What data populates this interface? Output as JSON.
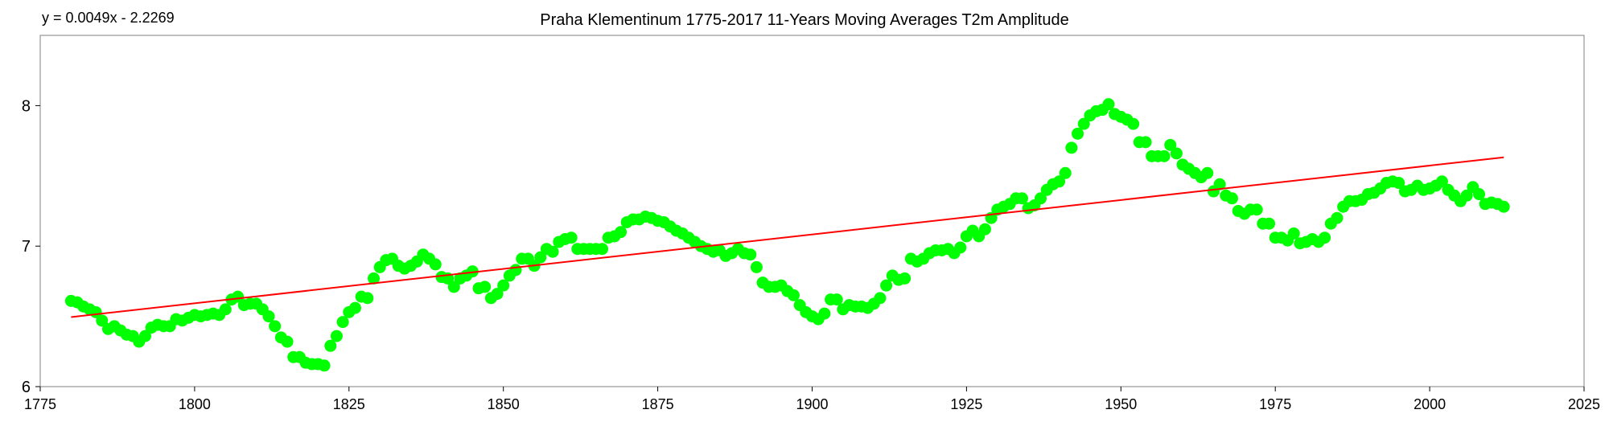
{
  "chart_data": {
    "type": "scatter",
    "title": "Praha Klementinum 1775-2017 11-Years Moving Averages T2m Amplitude",
    "trendline_equation": "y = 0.0049x - 2.2269",
    "xlabel": "",
    "ylabel": "",
    "xlim": [
      1775,
      2025
    ],
    "ylim": [
      6,
      8.5
    ],
    "x_ticks": [
      "1775",
      "1800",
      "1825",
      "1850",
      "1875",
      "1900",
      "1925",
      "1950",
      "1975",
      "2000",
      "2025"
    ],
    "y_ticks": [
      "6",
      "7",
      "8"
    ],
    "grid": false,
    "marker_color": "#00ff00",
    "trend_color": "#ff0000",
    "trendline": {
      "x_start": 1780,
      "x_end": 2012,
      "slope": 0.0049,
      "intercept": -2.2269
    },
    "series": [
      {
        "values": [
          [
            1780,
            6.61
          ],
          [
            1781,
            6.6
          ],
          [
            1782,
            6.57
          ],
          [
            1783,
            6.55
          ],
          [
            1784,
            6.53
          ],
          [
            1785,
            6.47
          ],
          [
            1786,
            6.41
          ],
          [
            1787,
            6.43
          ],
          [
            1788,
            6.4
          ],
          [
            1789,
            6.37
          ],
          [
            1790,
            6.36
          ],
          [
            1791,
            6.32
          ],
          [
            1792,
            6.36
          ],
          [
            1793,
            6.42
          ],
          [
            1794,
            6.44
          ],
          [
            1795,
            6.43
          ],
          [
            1796,
            6.43
          ],
          [
            1797,
            6.48
          ],
          [
            1798,
            6.47
          ],
          [
            1799,
            6.49
          ],
          [
            1800,
            6.51
          ],
          [
            1801,
            6.5
          ],
          [
            1802,
            6.51
          ],
          [
            1803,
            6.52
          ],
          [
            1804,
            6.51
          ],
          [
            1805,
            6.55
          ],
          [
            1806,
            6.62
          ],
          [
            1807,
            6.64
          ],
          [
            1808,
            6.58
          ],
          [
            1809,
            6.59
          ],
          [
            1810,
            6.59
          ],
          [
            1811,
            6.55
          ],
          [
            1812,
            6.5
          ],
          [
            1813,
            6.43
          ],
          [
            1814,
            6.35
          ],
          [
            1815,
            6.32
          ],
          [
            1816,
            6.21
          ],
          [
            1817,
            6.21
          ],
          [
            1818,
            6.17
          ],
          [
            1819,
            6.16
          ],
          [
            1820,
            6.16
          ],
          [
            1821,
            6.15
          ],
          [
            1822,
            6.29
          ],
          [
            1823,
            6.36
          ],
          [
            1824,
            6.46
          ],
          [
            1825,
            6.53
          ],
          [
            1826,
            6.56
          ],
          [
            1827,
            6.64
          ],
          [
            1828,
            6.63
          ],
          [
            1829,
            6.77
          ],
          [
            1830,
            6.85
          ],
          [
            1831,
            6.9
          ],
          [
            1832,
            6.91
          ],
          [
            1833,
            6.86
          ],
          [
            1834,
            6.84
          ],
          [
            1835,
            6.86
          ],
          [
            1836,
            6.89
          ],
          [
            1837,
            6.94
          ],
          [
            1838,
            6.91
          ],
          [
            1839,
            6.87
          ],
          [
            1840,
            6.78
          ],
          [
            1841,
            6.77
          ],
          [
            1842,
            6.71
          ],
          [
            1843,
            6.77
          ],
          [
            1844,
            6.79
          ],
          [
            1845,
            6.82
          ],
          [
            1846,
            6.7
          ],
          [
            1847,
            6.71
          ],
          [
            1848,
            6.63
          ],
          [
            1849,
            6.66
          ],
          [
            1850,
            6.72
          ],
          [
            1851,
            6.79
          ],
          [
            1852,
            6.83
          ],
          [
            1853,
            6.91
          ],
          [
            1854,
            6.91
          ],
          [
            1855,
            6.86
          ],
          [
            1856,
            6.92
          ],
          [
            1857,
            6.98
          ],
          [
            1858,
            6.96
          ],
          [
            1859,
            7.03
          ],
          [
            1860,
            7.05
          ],
          [
            1861,
            7.06
          ],
          [
            1862,
            6.98
          ],
          [
            1863,
            6.98
          ],
          [
            1864,
            6.98
          ],
          [
            1865,
            6.98
          ],
          [
            1866,
            6.98
          ],
          [
            1867,
            7.06
          ],
          [
            1868,
            7.07
          ],
          [
            1869,
            7.1
          ],
          [
            1870,
            7.17
          ],
          [
            1871,
            7.19
          ],
          [
            1872,
            7.19
          ],
          [
            1873,
            7.21
          ],
          [
            1874,
            7.2
          ],
          [
            1875,
            7.18
          ],
          [
            1876,
            7.17
          ],
          [
            1877,
            7.14
          ],
          [
            1878,
            7.11
          ],
          [
            1879,
            7.09
          ],
          [
            1880,
            7.06
          ],
          [
            1881,
            7.03
          ],
          [
            1882,
            7.0
          ],
          [
            1883,
            6.98
          ],
          [
            1884,
            6.96
          ],
          [
            1885,
            6.97
          ],
          [
            1886,
            6.93
          ],
          [
            1887,
            6.95
          ],
          [
            1888,
            6.98
          ],
          [
            1889,
            6.95
          ],
          [
            1890,
            6.94
          ],
          [
            1891,
            6.85
          ],
          [
            1892,
            6.74
          ],
          [
            1893,
            6.71
          ],
          [
            1894,
            6.71
          ],
          [
            1895,
            6.72
          ],
          [
            1896,
            6.68
          ],
          [
            1897,
            6.65
          ],
          [
            1898,
            6.58
          ],
          [
            1899,
            6.53
          ],
          [
            1900,
            6.5
          ],
          [
            1901,
            6.48
          ],
          [
            1902,
            6.52
          ],
          [
            1903,
            6.62
          ],
          [
            1904,
            6.62
          ],
          [
            1905,
            6.55
          ],
          [
            1906,
            6.58
          ],
          [
            1907,
            6.57
          ],
          [
            1908,
            6.57
          ],
          [
            1909,
            6.56
          ],
          [
            1910,
            6.59
          ],
          [
            1911,
            6.63
          ],
          [
            1912,
            6.72
          ],
          [
            1913,
            6.79
          ],
          [
            1914,
            6.76
          ],
          [
            1915,
            6.77
          ],
          [
            1916,
            6.91
          ],
          [
            1917,
            6.89
          ],
          [
            1918,
            6.91
          ],
          [
            1919,
            6.95
          ],
          [
            1920,
            6.97
          ],
          [
            1921,
            6.97
          ],
          [
            1922,
            6.98
          ],
          [
            1923,
            6.95
          ],
          [
            1924,
            6.99
          ],
          [
            1925,
            7.07
          ],
          [
            1926,
            7.11
          ],
          [
            1927,
            7.07
          ],
          [
            1928,
            7.12
          ],
          [
            1929,
            7.2
          ],
          [
            1930,
            7.26
          ],
          [
            1931,
            7.28
          ],
          [
            1932,
            7.3
          ],
          [
            1933,
            7.34
          ],
          [
            1934,
            7.34
          ],
          [
            1935,
            7.27
          ],
          [
            1936,
            7.29
          ],
          [
            1937,
            7.34
          ],
          [
            1938,
            7.4
          ],
          [
            1939,
            7.44
          ],
          [
            1940,
            7.46
          ],
          [
            1941,
            7.52
          ],
          [
            1942,
            7.7
          ],
          [
            1943,
            7.8
          ],
          [
            1944,
            7.87
          ],
          [
            1945,
            7.93
          ],
          [
            1946,
            7.96
          ],
          [
            1947,
            7.97
          ],
          [
            1948,
            8.01
          ],
          [
            1949,
            7.94
          ],
          [
            1950,
            7.92
          ],
          [
            1951,
            7.9
          ],
          [
            1952,
            7.87
          ],
          [
            1953,
            7.74
          ],
          [
            1954,
            7.74
          ],
          [
            1955,
            7.64
          ],
          [
            1956,
            7.64
          ],
          [
            1957,
            7.64
          ],
          [
            1958,
            7.72
          ],
          [
            1959,
            7.66
          ],
          [
            1960,
            7.58
          ],
          [
            1961,
            7.55
          ],
          [
            1962,
            7.52
          ],
          [
            1963,
            7.49
          ],
          [
            1964,
            7.52
          ],
          [
            1965,
            7.39
          ],
          [
            1966,
            7.44
          ],
          [
            1967,
            7.36
          ],
          [
            1968,
            7.34
          ],
          [
            1969,
            7.25
          ],
          [
            1970,
            7.23
          ],
          [
            1971,
            7.26
          ],
          [
            1972,
            7.26
          ],
          [
            1973,
            7.16
          ],
          [
            1974,
            7.16
          ],
          [
            1975,
            7.06
          ],
          [
            1976,
            7.06
          ],
          [
            1977,
            7.04
          ],
          [
            1978,
            7.09
          ],
          [
            1979,
            7.02
          ],
          [
            1980,
            7.03
          ],
          [
            1981,
            7.05
          ],
          [
            1982,
            7.03
          ],
          [
            1983,
            7.06
          ],
          [
            1984,
            7.16
          ],
          [
            1985,
            7.2
          ],
          [
            1986,
            7.28
          ],
          [
            1987,
            7.32
          ],
          [
            1988,
            7.32
          ],
          [
            1989,
            7.33
          ],
          [
            1990,
            7.37
          ],
          [
            1991,
            7.38
          ],
          [
            1992,
            7.41
          ],
          [
            1993,
            7.45
          ],
          [
            1994,
            7.46
          ],
          [
            1995,
            7.45
          ],
          [
            1996,
            7.39
          ],
          [
            1997,
            7.4
          ],
          [
            1998,
            7.43
          ],
          [
            1999,
            7.4
          ],
          [
            2000,
            7.41
          ],
          [
            2001,
            7.43
          ],
          [
            2002,
            7.46
          ],
          [
            2003,
            7.4
          ],
          [
            2004,
            7.36
          ],
          [
            2005,
            7.32
          ],
          [
            2006,
            7.36
          ],
          [
            2007,
            7.42
          ],
          [
            2008,
            7.37
          ],
          [
            2009,
            7.3
          ],
          [
            2010,
            7.31
          ],
          [
            2011,
            7.3
          ],
          [
            2012,
            7.28
          ]
        ]
      }
    ]
  }
}
